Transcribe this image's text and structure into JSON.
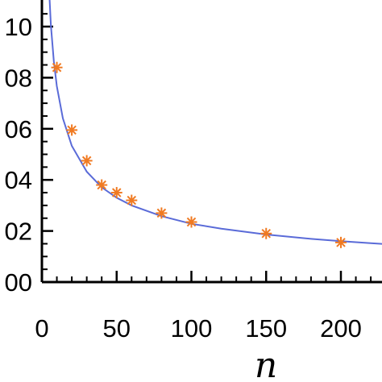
{
  "chart_data": {
    "type": "scatter",
    "title": "",
    "xlabel": "n",
    "ylabel": "",
    "xlim": [
      0,
      240
    ],
    "ylim": [
      0.0,
      0.11
    ],
    "x_ticks": [
      0,
      50,
      100,
      150,
      200
    ],
    "x_tick_labels": [
      "0",
      "50",
      "100",
      "150",
      "200"
    ],
    "y_ticks": [
      0.0,
      0.02,
      0.04,
      0.06,
      0.08,
      0.1
    ],
    "y_tick_labels": [
      "00",
      "02",
      "04",
      "06",
      "08",
      "10"
    ],
    "grid": false,
    "series": [
      {
        "kind": "points",
        "marker": "asterisk",
        "color": "#f07a22",
        "x": [
          10,
          20,
          30,
          40,
          50,
          60,
          80,
          100,
          150,
          200
        ],
        "y": [
          0.084,
          0.0595,
          0.0475,
          0.038,
          0.035,
          0.032,
          0.027,
          0.0235,
          0.019,
          0.0155
        ]
      },
      {
        "kind": "fit-curve",
        "color": "#5a6bd8",
        "formula": "y = 0.26 / n^0.53",
        "x": [
          4,
          6,
          8,
          10,
          14,
          20,
          30,
          40,
          50,
          60,
          80,
          100,
          120,
          150,
          180,
          200,
          220,
          240
        ],
        "y": [
          0.1244,
          0.1007,
          0.0864,
          0.0767,
          0.0641,
          0.0533,
          0.0432,
          0.0371,
          0.033,
          0.03,
          0.0258,
          0.0228,
          0.0209,
          0.0186,
          0.0169,
          0.016,
          0.0152,
          0.0145
        ]
      }
    ]
  }
}
